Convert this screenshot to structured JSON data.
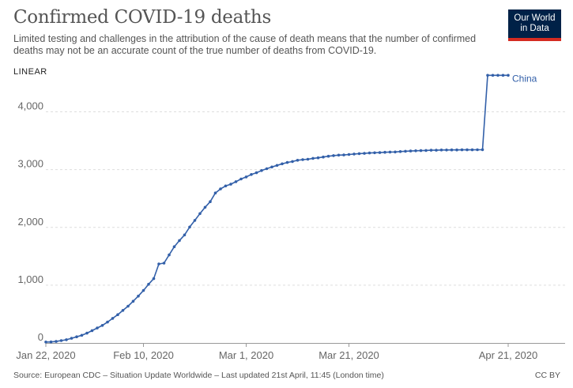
{
  "header": {
    "title": "Confirmed COVID-19 deaths",
    "subtitle": "Limited testing and challenges in the attribution of the cause of death means that the number of confirmed deaths may not be an accurate count of the true number of deaths from COVID-19.",
    "logo_line1": "Our World",
    "logo_line2": "in Data",
    "scale_toggle": "LINEAR"
  },
  "footer": {
    "source": "Source: European CDC – Situation Update Worldwide – Last updated 21st April, 11:45 (London time)",
    "license": "CC BY"
  },
  "colors": {
    "series": "#3360a9",
    "grid": "#dddddd",
    "logo_bg": "#002147",
    "logo_accent": "#d42b21"
  },
  "chart_data": {
    "type": "line",
    "title": "Confirmed COVID-19 deaths",
    "x_start_label": "Jan 22, 2020",
    "x_ticks": [
      "Jan 22, 2020",
      "Feb 10, 2020",
      "Mar 1, 2020",
      "Mar 21, 2020",
      "Apr 21, 2020"
    ],
    "y_ticks": [
      0,
      1000,
      2000,
      3000,
      4000
    ],
    "ylim": [
      0,
      4636
    ],
    "grid": "horizontal",
    "series": [
      {
        "name": "China",
        "values": [
          17,
          18,
          26,
          41,
          56,
          81,
          106,
          132,
          170,
          213,
          259,
          304,
          361,
          425,
          490,
          563,
          636,
          722,
          811,
          908,
          1016,
          1113,
          1368,
          1381,
          1524,
          1666,
          1772,
          1870,
          2006,
          2121,
          2239,
          2348,
          2445,
          2595,
          2666,
          2718,
          2747,
          2791,
          2838,
          2873,
          2915,
          2946,
          2984,
          3015,
          3045,
          3073,
          3100,
          3123,
          3140,
          3162,
          3173,
          3180,
          3194,
          3204,
          3218,
          3231,
          3242,
          3250,
          3253,
          3261,
          3270,
          3277,
          3281,
          3287,
          3292,
          3295,
          3300,
          3304,
          3305,
          3312,
          3318,
          3322,
          3326,
          3329,
          3331,
          3335,
          3336,
          3339,
          3340,
          3341,
          3341,
          3342,
          3342,
          3342,
          3344,
          3345,
          4632,
          4632,
          4632,
          4632,
          4632
        ]
      }
    ]
  }
}
